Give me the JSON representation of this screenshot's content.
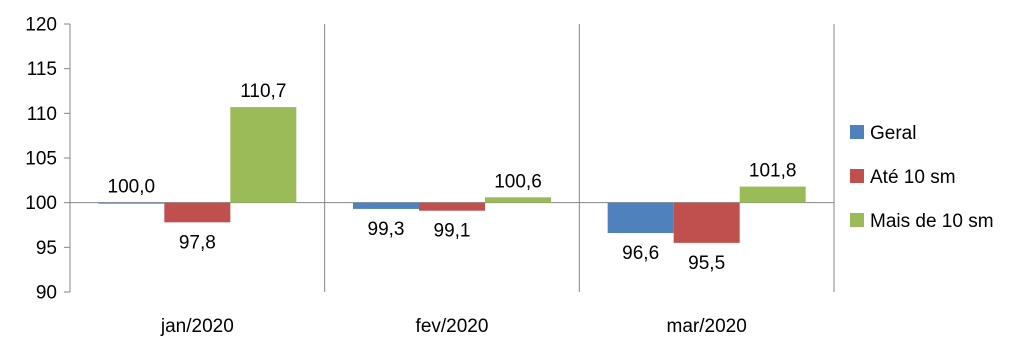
{
  "chart_data": {
    "type": "bar",
    "categories": [
      "jan/2020",
      "fev/2020",
      "mar/2020"
    ],
    "series": [
      {
        "name": "Geral",
        "values": [
          100.0,
          99.3,
          96.6
        ],
        "labels": [
          "100,0",
          "99,3",
          "96,6"
        ],
        "color": "#4f81bd"
      },
      {
        "name": "Até 10 sm",
        "values": [
          97.8,
          99.1,
          95.5
        ],
        "labels": [
          "97,8",
          "99,1",
          "95,5"
        ],
        "color": "#c0504d"
      },
      {
        "name": "Mais de 10 sm",
        "values": [
          110.7,
          100.6,
          101.8
        ],
        "labels": [
          "110,7",
          "100,6",
          "101,8"
        ],
        "color": "#9bbb59"
      }
    ],
    "baseline": 100,
    "ylim": [
      90,
      120
    ],
    "yticks": [
      90,
      95,
      100,
      105,
      110,
      115,
      120
    ],
    "title": "",
    "xlabel": "",
    "ylabel": "",
    "grid": false,
    "legend_position": "right"
  }
}
